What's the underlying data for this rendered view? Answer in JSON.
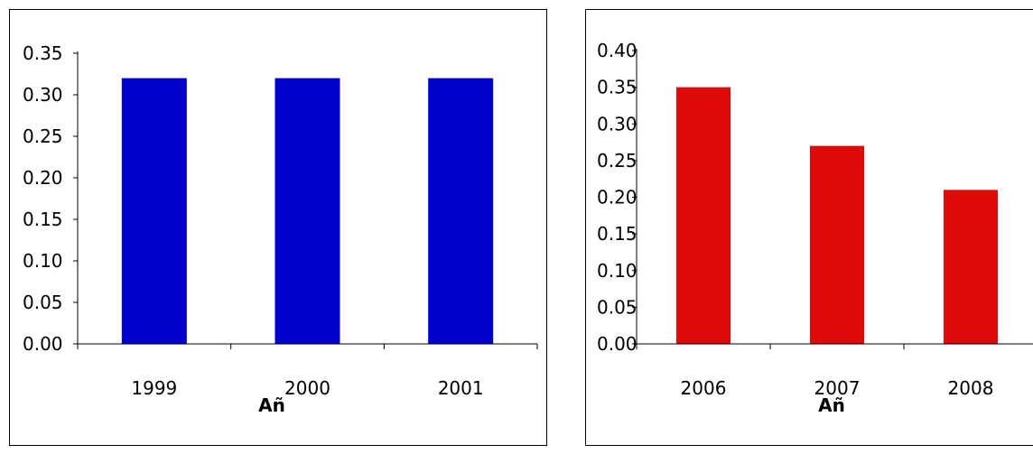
{
  "chart_data": [
    {
      "type": "bar",
      "categories": [
        "1999",
        "2000",
        "2001"
      ],
      "values": [
        0.32,
        0.32,
        0.32
      ],
      "ylim": [
        0,
        0.35
      ],
      "yticks": [
        "0.00",
        "0.05",
        "0.10",
        "0.15",
        "0.20",
        "0.25",
        "0.30",
        "0.35"
      ],
      "xlabel": "Añ",
      "ylabel": "",
      "title": "",
      "bar_color": "#0000CC",
      "grid": false
    },
    {
      "type": "bar",
      "categories": [
        "2006",
        "2007",
        "2008"
      ],
      "values": [
        0.35,
        0.27,
        0.21
      ],
      "ylim": [
        0,
        0.4
      ],
      "yticks": [
        "0.00",
        "0.05",
        "0.10",
        "0.15",
        "0.20",
        "0.25",
        "0.30",
        "0.35",
        "0.40"
      ],
      "xlabel": "Añ",
      "ylabel": "",
      "title": "",
      "bar_color": "#DD0A08",
      "grid": false
    }
  ]
}
